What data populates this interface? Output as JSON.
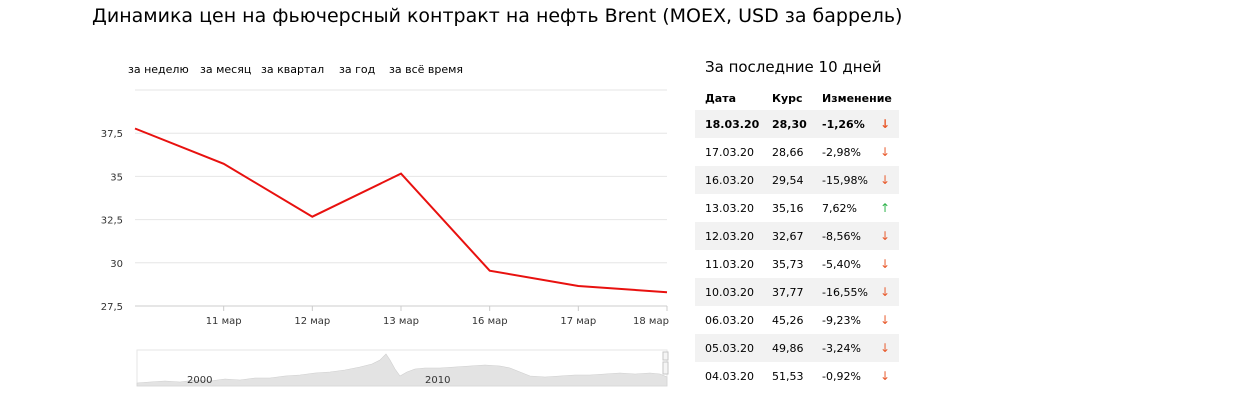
{
  "title": "Динамика цен на фьючерсный контракт на нефть Brent (MOEX, USD за баррель)",
  "periods": [
    "за неделю",
    "за месяц",
    "за квартал",
    "за год",
    "за всё время"
  ],
  "chart_data": {
    "type": "line",
    "x": [
      "10 мар",
      "11 мар",
      "12 мар",
      "13 мар",
      "16 мар",
      "17 мар",
      "18 мар"
    ],
    "x_tick_labels": [
      "11 мар",
      "12 мар",
      "13 мар",
      "16 мар",
      "17 мар",
      "18 мар"
    ],
    "series": [
      {
        "values": [
          37.77,
          35.73,
          32.67,
          35.16,
          29.54,
          28.66,
          28.3
        ],
        "color": "#e8110f"
      }
    ],
    "y_ticks": [
      "27,5",
      "30",
      "32,5",
      "35",
      "37,5"
    ],
    "ylim": [
      27.5,
      40
    ],
    "grid": true,
    "navigator_labels": [
      "2000",
      "2010"
    ]
  },
  "table": {
    "title": "За последние 10 дней",
    "headers": {
      "date": "Дата",
      "rate": "Курс",
      "change": "Изменение"
    },
    "rows": [
      {
        "date": "18.03.20",
        "rate": "28,30",
        "change": "-1,26%",
        "arrow": "↓",
        "dir": "down"
      },
      {
        "date": "17.03.20",
        "rate": "28,66",
        "change": "-2,98%",
        "arrow": "↓",
        "dir": "down"
      },
      {
        "date": "16.03.20",
        "rate": "29,54",
        "change": "-15,98%",
        "arrow": "↓",
        "dir": "down"
      },
      {
        "date": "13.03.20",
        "rate": "35,16",
        "change": "7,62%",
        "arrow": "↑",
        "dir": "up"
      },
      {
        "date": "12.03.20",
        "rate": "32,67",
        "change": "-8,56%",
        "arrow": "↓",
        "dir": "down"
      },
      {
        "date": "11.03.20",
        "rate": "35,73",
        "change": "-5,40%",
        "arrow": "↓",
        "dir": "down"
      },
      {
        "date": "10.03.20",
        "rate": "37,77",
        "change": "-16,55%",
        "arrow": "↓",
        "dir": "down"
      },
      {
        "date": "06.03.20",
        "rate": "45,26",
        "change": "-9,23%",
        "arrow": "↓",
        "dir": "down"
      },
      {
        "date": "05.03.20",
        "rate": "49,86",
        "change": "-3,24%",
        "arrow": "↓",
        "dir": "down"
      },
      {
        "date": "04.03.20",
        "rate": "51,53",
        "change": "-0,92%",
        "arrow": "↓",
        "dir": "down"
      }
    ]
  }
}
